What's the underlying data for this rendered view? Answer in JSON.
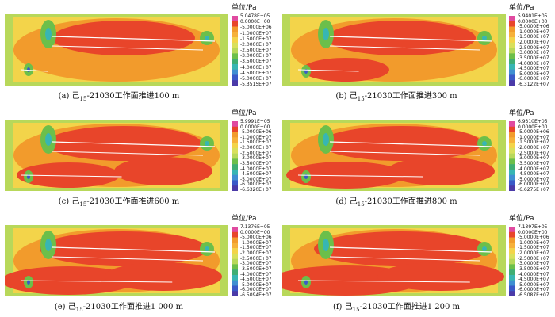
{
  "unit_label": "单位/Pa",
  "panels": [
    {
      "caption_prefix": "(a)",
      "caption_char": "己",
      "caption_sub": "15",
      "caption_rest": "-21030工作面推进100 m",
      "ticks": [
        "5.0478E+05",
        "0.0000E+00",
        "-5.0000E+06",
        "-1.0000E+07",
        "-1.5000E+07",
        "-2.0000E+07",
        "-2.5000E+07",
        "-3.0000E+07",
        "-3.5000E+07",
        "-4.0000E+07",
        "-4.5000E+07",
        "-5.0000E+07",
        "-5.3515E+07"
      ]
    },
    {
      "caption_prefix": "(b)",
      "caption_char": "己",
      "caption_sub": "15",
      "caption_rest": "-21030工作面推进300 m",
      "ticks": [
        "5.9401E+05",
        "0.0000E+00",
        "-5.0000E+06",
        "-1.0000E+07",
        "-1.5000E+07",
        "-2.0000E+07",
        "-2.5000E+07",
        "-3.0000E+07",
        "-3.5000E+07",
        "-4.0000E+07",
        "-4.5000E+07",
        "-5.0000E+07",
        "-6.0000E+07",
        "-6.3122E+07"
      ]
    },
    {
      "caption_prefix": "(c)",
      "caption_char": "己",
      "caption_sub": "15",
      "caption_rest": "-21030工作面推进600 m",
      "ticks": [
        "5.9991E+05",
        "0.0000E+00",
        "-5.0000E+06",
        "-1.0000E+07",
        "-1.5000E+07",
        "-2.0000E+07",
        "-2.5000E+07",
        "-3.0000E+07",
        "-3.5000E+07",
        "-4.0000E+07",
        "-4.5000E+07",
        "-5.0000E+07",
        "-6.0000E+07",
        "-6.6320E+07"
      ]
    },
    {
      "caption_prefix": "(d)",
      "caption_char": "己",
      "caption_sub": "15",
      "caption_rest": "-21030工作面推进800 m",
      "ticks": [
        "6.9310E+05",
        "0.0000E+00",
        "-5.0000E+06",
        "-1.0000E+07",
        "-1.5000E+07",
        "-2.0000E+07",
        "-2.5000E+07",
        "-3.0000E+07",
        "-3.5000E+07",
        "-4.0000E+07",
        "-4.5000E+07",
        "-5.0000E+07",
        "-6.0000E+07",
        "-6.6275E+07"
      ]
    },
    {
      "caption_prefix": "(e)",
      "caption_char": "己",
      "caption_sub": "15",
      "caption_rest": "-21030工作面推进1 000 m",
      "ticks": [
        "7.1376E+05",
        "0.0000E+00",
        "-5.0000E+06",
        "-1.0000E+07",
        "-1.5000E+07",
        "-2.0000E+07",
        "-2.5000E+07",
        "-3.0000E+07",
        "-3.5000E+07",
        "-4.0000E+07",
        "-4.5000E+07",
        "-5.0000E+07",
        "-6.0000E+07",
        "-6.5094E+07"
      ]
    },
    {
      "caption_prefix": "(f)",
      "caption_char": "己",
      "caption_sub": "15",
      "caption_rest": "-21030工作面推进1 200 m",
      "ticks": [
        "7.1397E+05",
        "0.0000E+00",
        "-5.0000E+06",
        "-1.0000E+07",
        "-1.5000E+07",
        "-2.0000E+07",
        "-2.5000E+07",
        "-3.0000E+07",
        "-3.5000E+07",
        "-4.0000E+07",
        "-4.5000E+07",
        "-5.0000E+07",
        "-6.0000E+07",
        "-6.5087E+07"
      ]
    }
  ],
  "palette": {
    "red": "#e8452a",
    "orange": "#f29b2c",
    "yellow": "#f3d44a",
    "lightgreen": "#b8d85a",
    "green": "#6cbf4a",
    "cyan": "#37b6b3",
    "blue": "#3a59c8",
    "magenta": "#e04aa0"
  }
}
